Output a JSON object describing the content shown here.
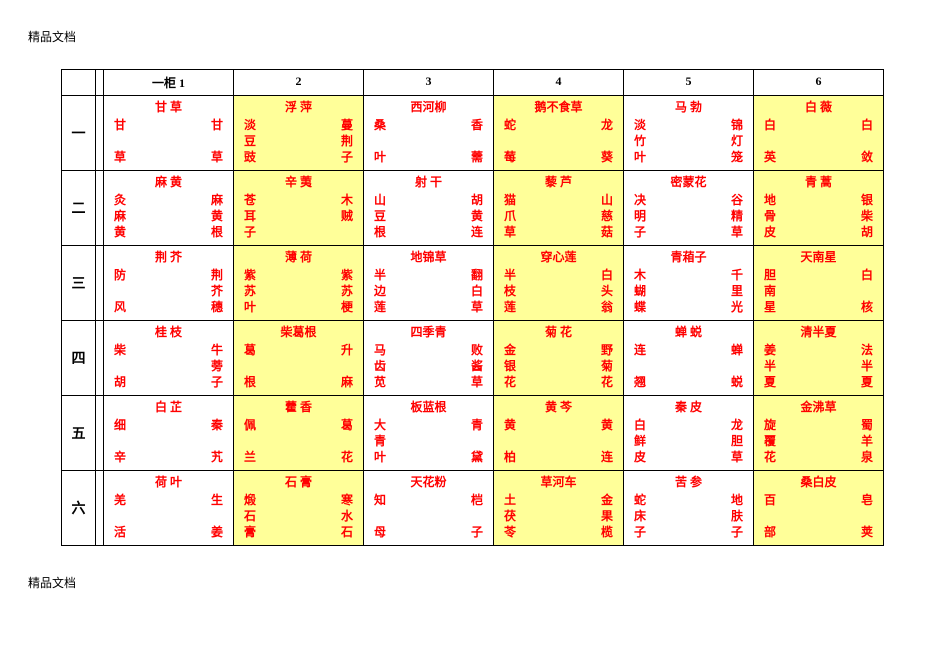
{
  "doc_label": "精品文档",
  "colors": {
    "text": "#ff0000",
    "highlight_bg": "#ffff99",
    "normal_bg": "#ffffff",
    "border": "#000000"
  },
  "fonts": {
    "cell_fontsize": 12,
    "rowlabel_fontsize": 14,
    "header_fontsize": 12
  },
  "layout": {
    "row_label_width": 34,
    "col_spacer_width": 8,
    "col_data_width": 130,
    "highlight_cols": [
      2,
      4,
      6
    ]
  },
  "headers": [
    "一柜 1",
    "2",
    "3",
    "4",
    "5",
    "6"
  ],
  "row_labels": [
    "一",
    "二",
    "三",
    "四",
    "五",
    "六"
  ],
  "rows": [
    [
      {
        "title": "甘 草",
        "lines": [
          [
            "甘",
            "甘"
          ],
          [
            "",
            ""
          ],
          [
            "草",
            "草"
          ]
        ]
      },
      {
        "title": "浮 萍",
        "lines": [
          [
            "淡",
            "蔓"
          ],
          [
            "豆",
            "荆"
          ],
          [
            "豉",
            "子"
          ]
        ]
      },
      {
        "title": "西河柳",
        "lines": [
          [
            "桑",
            "香"
          ],
          [
            "",
            ""
          ],
          [
            "叶",
            "薷"
          ]
        ]
      },
      {
        "title": "鹅不食草",
        "lines": [
          [
            "蛇",
            "龙"
          ],
          [
            "",
            ""
          ],
          [
            "莓",
            "葵"
          ]
        ]
      },
      {
        "title": "马 勃",
        "lines": [
          [
            "淡",
            "锦"
          ],
          [
            "竹",
            "灯"
          ],
          [
            "叶",
            "笼"
          ]
        ]
      },
      {
        "title": "白 薇",
        "lines": [
          [
            "白",
            "白"
          ],
          [
            "",
            ""
          ],
          [
            "英",
            "敛"
          ]
        ]
      }
    ],
    [
      {
        "title": "麻 黄",
        "lines": [
          [
            "灸",
            "麻"
          ],
          [
            "麻",
            "黄"
          ],
          [
            "黄",
            "根"
          ]
        ]
      },
      {
        "title": "辛 荑",
        "lines": [
          [
            "苍",
            "木"
          ],
          [
            "耳",
            "贼"
          ],
          [
            "子",
            ""
          ]
        ]
      },
      {
        "title": "射 干",
        "lines": [
          [
            "山",
            "胡"
          ],
          [
            "豆",
            "黄"
          ],
          [
            "根",
            "连"
          ]
        ]
      },
      {
        "title": "藜 芦",
        "lines": [
          [
            "猫",
            "山"
          ],
          [
            "爪",
            "慈"
          ],
          [
            "草",
            "菇"
          ]
        ]
      },
      {
        "title": "密蒙花",
        "lines": [
          [
            "决",
            "谷"
          ],
          [
            "明",
            "精"
          ],
          [
            "子",
            "草"
          ]
        ]
      },
      {
        "title": "青 蒿",
        "lines": [
          [
            "地",
            "银"
          ],
          [
            "骨",
            "柴"
          ],
          [
            "皮",
            "胡"
          ]
        ]
      }
    ],
    [
      {
        "title": "荆 芥",
        "lines": [
          [
            "防",
            "荆"
          ],
          [
            "",
            "芥"
          ],
          [
            "风",
            "穗"
          ]
        ]
      },
      {
        "title": "薄 荷",
        "lines": [
          [
            "紫",
            "紫"
          ],
          [
            "苏",
            "苏"
          ],
          [
            "叶",
            "梗"
          ]
        ]
      },
      {
        "title": "地锦草",
        "lines": [
          [
            "半",
            "翻"
          ],
          [
            "边",
            "白"
          ],
          [
            "莲",
            "草"
          ]
        ]
      },
      {
        "title": "穿心莲",
        "lines": [
          [
            "半",
            "白"
          ],
          [
            "枝",
            "头"
          ],
          [
            "莲",
            "翁"
          ]
        ]
      },
      {
        "title": "青葙子",
        "lines": [
          [
            "木",
            "千"
          ],
          [
            "蝴",
            "里"
          ],
          [
            "蝶",
            "光"
          ]
        ]
      },
      {
        "title": "天南星",
        "lines": [
          [
            "胆",
            "白"
          ],
          [
            "南",
            ""
          ],
          [
            "星",
            "核"
          ]
        ]
      }
    ],
    [
      {
        "title": "桂 枝",
        "lines": [
          [
            "柴",
            "牛"
          ],
          [
            "",
            "蒡"
          ],
          [
            "胡",
            "子"
          ]
        ]
      },
      {
        "title": "柴葛根",
        "lines": [
          [
            "葛",
            "升"
          ],
          [
            "",
            ""
          ],
          [
            "根",
            "麻"
          ]
        ]
      },
      {
        "title": "四季青",
        "lines": [
          [
            "马",
            "败"
          ],
          [
            "齿",
            "酱"
          ],
          [
            "苋",
            "草"
          ]
        ]
      },
      {
        "title": "菊 花",
        "lines": [
          [
            "金",
            "野"
          ],
          [
            "银",
            "菊"
          ],
          [
            "花",
            "花"
          ]
        ]
      },
      {
        "title": "蝉 蜕",
        "lines": [
          [
            "连",
            "蝉"
          ],
          [
            "",
            ""
          ],
          [
            "翘",
            "蜕"
          ]
        ]
      },
      {
        "title": "清半夏",
        "lines": [
          [
            "姜",
            "法"
          ],
          [
            "半",
            "半"
          ],
          [
            "夏",
            "夏"
          ]
        ]
      }
    ],
    [
      {
        "title": "白 芷",
        "lines": [
          [
            "细",
            "秦"
          ],
          [
            "",
            ""
          ],
          [
            "辛",
            "艽"
          ]
        ]
      },
      {
        "title": "藿 香",
        "lines": [
          [
            "佩",
            "葛"
          ],
          [
            "",
            ""
          ],
          [
            "兰",
            "花"
          ]
        ]
      },
      {
        "title": "板蓝根",
        "lines": [
          [
            "大",
            "青"
          ],
          [
            "青",
            ""
          ],
          [
            "叶",
            "黛"
          ]
        ]
      },
      {
        "title": "黄 芩",
        "lines": [
          [
            "黄",
            "黄"
          ],
          [
            "",
            ""
          ],
          [
            "柏",
            "连"
          ]
        ]
      },
      {
        "title": "秦 皮",
        "lines": [
          [
            "白",
            "龙"
          ],
          [
            "鲜",
            "胆"
          ],
          [
            "皮",
            "草"
          ]
        ]
      },
      {
        "title": "金沸草",
        "lines": [
          [
            "旋",
            "蜀"
          ],
          [
            "覆",
            "羊"
          ],
          [
            "花",
            "泉"
          ]
        ]
      }
    ],
    [
      {
        "title": "荷 叶",
        "lines": [
          [
            "羌",
            "生"
          ],
          [
            "",
            ""
          ],
          [
            "活",
            "姜"
          ]
        ]
      },
      {
        "title": "石 膏",
        "lines": [
          [
            "煅",
            "寒"
          ],
          [
            "石",
            "水"
          ],
          [
            "膏",
            "石"
          ]
        ]
      },
      {
        "title": "天花粉",
        "lines": [
          [
            "知",
            "桤"
          ],
          [
            "",
            ""
          ],
          [
            "母",
            "子"
          ]
        ]
      },
      {
        "title": "草河车",
        "lines": [
          [
            "土",
            "金"
          ],
          [
            "茯",
            "果"
          ],
          [
            "苓",
            "榄"
          ]
        ]
      },
      {
        "title": "苦 参",
        "lines": [
          [
            "蛇",
            "地"
          ],
          [
            "床",
            "肤"
          ],
          [
            "子",
            "子"
          ]
        ]
      },
      {
        "title": "桑白皮",
        "lines": [
          [
            "百",
            "皂"
          ],
          [
            "",
            ""
          ],
          [
            "部",
            "荚"
          ]
        ]
      }
    ]
  ]
}
